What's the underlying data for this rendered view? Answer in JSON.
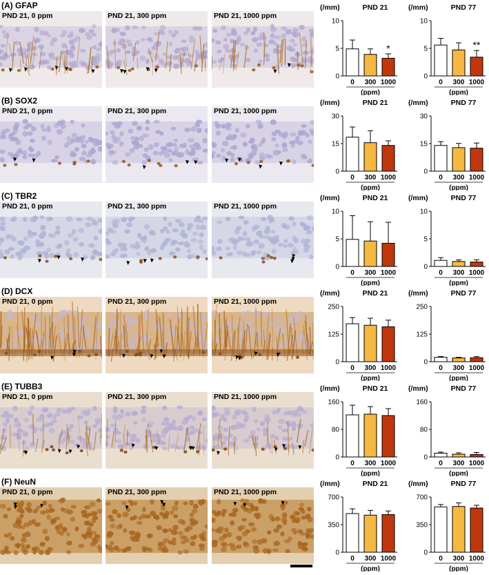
{
  "figure": {
    "ppm_label": "(ppm)",
    "unit_label": "(/mm)",
    "bar_colors": {
      "0": "#ffffff",
      "300": "#f5b942",
      "1000": "#c0370e"
    },
    "panels": [
      {
        "title": "(A) GFAP",
        "stain": "gfap",
        "images": [
          {
            "label": "PND 21, 0 ppm",
            "arrows": 5
          },
          {
            "label": "PND 21, 300 ppm",
            "arrows": 4
          },
          {
            "label": "PND 21, 1000 ppm",
            "arrows": 2
          }
        ]
      },
      {
        "title": "(B) SOX2",
        "stain": "sox2",
        "images": [
          {
            "label": "PND 21, 0 ppm",
            "arrows": 2
          },
          {
            "label": "PND 21, 300 ppm",
            "arrows": 3
          },
          {
            "label": "PND 21, 1000 ppm",
            "arrows": 4
          }
        ]
      },
      {
        "title": "(C) TBR2",
        "stain": "tbr2",
        "images": [
          {
            "label": "PND 21, 0 ppm",
            "arrows": 3
          },
          {
            "label": "PND 21, 300 ppm",
            "arrows": 3
          },
          {
            "label": "PND 21, 1000 ppm",
            "arrows": 3
          }
        ]
      },
      {
        "title": "(D) DCX",
        "stain": "dcx",
        "images": [
          {
            "label": "PND 21, 0 ppm",
            "arrows": 3
          },
          {
            "label": "PND 21, 300 ppm",
            "arrows": 4
          },
          {
            "label": "PND 21, 1000 ppm",
            "arrows": 4
          }
        ]
      },
      {
        "title": "(E) TUBB3",
        "stain": "tubb3",
        "images": [
          {
            "label": "PND 21, 0 ppm",
            "arrows": 4
          },
          {
            "label": "PND 21, 300 ppm",
            "arrows": 4
          },
          {
            "label": "PND 21, 1000 ppm",
            "arrows": 4
          }
        ]
      },
      {
        "title": "(F) NeuN",
        "stain": "neun",
        "images": [
          {
            "label": "PND 21, 0 ppm",
            "arrows": 3
          },
          {
            "label": "PND 21, 300 ppm",
            "arrows": 3
          },
          {
            "label": "PND 21, 1000 ppm",
            "arrows": 3
          }
        ]
      }
    ]
  },
  "chart_data": [
    {
      "panel": "A",
      "title": "PND 21",
      "type": "bar",
      "ylabel": "(/mm)",
      "xlabel": "(ppm)",
      "categories": [
        "0",
        "300",
        "1000"
      ],
      "values": [
        4.9,
        3.9,
        3.2
      ],
      "errors": [
        1.6,
        1.0,
        0.8
      ],
      "ylim": [
        0,
        10
      ],
      "yticks": [
        0,
        5,
        10
      ],
      "annotations": [
        "",
        "",
        "*"
      ]
    },
    {
      "panel": "A",
      "title": "PND 77",
      "type": "bar",
      "ylabel": "(/mm)",
      "xlabel": "(ppm)",
      "categories": [
        "0",
        "300",
        "1000"
      ],
      "values": [
        5.6,
        4.7,
        3.4
      ],
      "errors": [
        1.2,
        1.3,
        1.2
      ],
      "ylim": [
        0,
        10
      ],
      "yticks": [
        0,
        5,
        10
      ],
      "annotations": [
        "",
        "",
        "**"
      ]
    },
    {
      "panel": "B",
      "title": "PND 21",
      "type": "bar",
      "ylabel": "(/mm)",
      "xlabel": "(ppm)",
      "categories": [
        "0",
        "300",
        "1000"
      ],
      "values": [
        18.5,
        15.5,
        14.0
      ],
      "errors": [
        5.5,
        6.5,
        2.5
      ],
      "ylim": [
        0,
        30
      ],
      "yticks": [
        0,
        15,
        30
      ],
      "annotations": [
        "",
        "",
        ""
      ]
    },
    {
      "panel": "B",
      "title": "PND 77",
      "type": "bar",
      "ylabel": "(/mm)",
      "xlabel": "(ppm)",
      "categories": [
        "0",
        "300",
        "1000"
      ],
      "values": [
        14.0,
        12.8,
        12.5
      ],
      "errors": [
        2.0,
        2.3,
        2.8
      ],
      "ylim": [
        0,
        30
      ],
      "yticks": [
        0,
        15,
        30
      ],
      "annotations": [
        "",
        "",
        ""
      ]
    },
    {
      "panel": "C",
      "title": "PND 21",
      "type": "bar",
      "ylabel": "(/mm)",
      "xlabel": "(ppm)",
      "categories": [
        "0",
        "300",
        "1000"
      ],
      "values": [
        4.9,
        4.6,
        4.2
      ],
      "errors": [
        4.3,
        3.5,
        3.8
      ],
      "ylim": [
        0,
        10
      ],
      "yticks": [
        0,
        5,
        10
      ],
      "annotations": [
        "",
        "",
        ""
      ]
    },
    {
      "panel": "C",
      "title": "PND 77",
      "type": "bar",
      "ylabel": "(/mm)",
      "xlabel": "(ppm)",
      "categories": [
        "0",
        "300",
        "1000"
      ],
      "values": [
        1.1,
        0.9,
        0.8
      ],
      "errors": [
        0.5,
        0.3,
        0.4
      ],
      "ylim": [
        0,
        10
      ],
      "yticks": [
        0,
        5,
        10
      ],
      "annotations": [
        "",
        "",
        ""
      ]
    },
    {
      "panel": "D",
      "title": "PND 21",
      "type": "bar",
      "ylabel": "(/mm)",
      "xlabel": "(ppm)",
      "categories": [
        "0",
        "300",
        "1000"
      ],
      "values": [
        172,
        165,
        158
      ],
      "errors": [
        28,
        32,
        30
      ],
      "ylim": [
        0,
        250
      ],
      "yticks": [
        0,
        125,
        250
      ],
      "annotations": [
        "",
        "",
        ""
      ]
    },
    {
      "panel": "D",
      "title": "PND 77",
      "type": "bar",
      "ylabel": "(/mm)",
      "xlabel": "(ppm)",
      "categories": [
        "0",
        "300",
        "1000"
      ],
      "values": [
        20,
        17,
        18
      ],
      "errors": [
        3,
        3,
        5
      ],
      "ylim": [
        0,
        250
      ],
      "yticks": [
        0,
        125,
        250
      ],
      "annotations": [
        "",
        "",
        ""
      ]
    },
    {
      "panel": "E",
      "title": "PND 21",
      "type": "bar",
      "ylabel": "(/mm)",
      "xlabel": "(ppm)",
      "categories": [
        "0",
        "300",
        "1000"
      ],
      "values": [
        122,
        124,
        120
      ],
      "errors": [
        28,
        22,
        20
      ],
      "ylim": [
        0,
        160
      ],
      "yticks": [
        0,
        80,
        160
      ],
      "annotations": [
        "",
        "",
        ""
      ]
    },
    {
      "panel": "E",
      "title": "PND 77",
      "type": "bar",
      "ylabel": "(/mm)",
      "xlabel": "(ppm)",
      "categories": [
        "0",
        "300",
        "1000"
      ],
      "values": [
        11,
        8,
        7
      ],
      "errors": [
        3,
        4,
        6
      ],
      "ylim": [
        0,
        160
      ],
      "yticks": [
        0,
        80,
        160
      ],
      "annotations": [
        "",
        "",
        ""
      ]
    },
    {
      "panel": "F",
      "title": "PND 21",
      "type": "bar",
      "ylabel": "(/mm)",
      "xlabel": "(ppm)",
      "categories": [
        "0",
        "300",
        "1000"
      ],
      "values": [
        490,
        470,
        478
      ],
      "errors": [
        60,
        60,
        45
      ],
      "ylim": [
        0,
        700
      ],
      "yticks": [
        0,
        350,
        700
      ],
      "annotations": [
        "",
        "",
        ""
      ]
    },
    {
      "panel": "F",
      "title": "PND 77",
      "type": "bar",
      "ylabel": "(/mm)",
      "xlabel": "(ppm)",
      "categories": [
        "0",
        "300",
        "1000"
      ],
      "values": [
        575,
        580,
        560
      ],
      "errors": [
        30,
        45,
        35
      ],
      "ylim": [
        0,
        700
      ],
      "yticks": [
        0,
        350,
        700
      ],
      "annotations": [
        "",
        "",
        ""
      ]
    }
  ]
}
